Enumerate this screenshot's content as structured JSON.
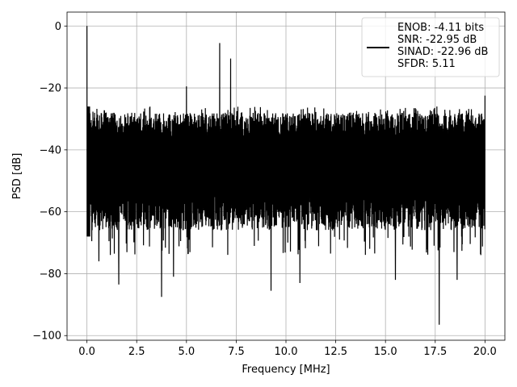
{
  "chart_data": {
    "type": "line",
    "title": "",
    "xlabel": "Frequency [MHz]",
    "ylabel": "PSD [dB]",
    "xlim": [
      -1.0,
      21.0
    ],
    "ylim": [
      -101.5,
      4.5
    ],
    "x_ticks": [
      0.0,
      2.5,
      5.0,
      7.5,
      10.0,
      12.5,
      15.0,
      17.5,
      20.0
    ],
    "x_tick_labels": [
      "0.0",
      "2.5",
      "5.0",
      "7.5",
      "10.0",
      "12.5",
      "15.0",
      "17.5",
      "20.0"
    ],
    "y_ticks": [
      0,
      -20,
      -40,
      -60,
      -80,
      -100
    ],
    "y_tick_labels": [
      "0",
      "−20",
      "−40",
      "−60",
      "−80",
      "−100"
    ],
    "grid": true,
    "legend_position": "upper right",
    "legend_lines": [
      "ENOB: -4.11 bits",
      "SNR: -22.95 dB",
      "SINAD: -22.96 dB",
      "SFDR: 5.11"
    ],
    "series": [
      {
        "color": "#000000",
        "band": {
          "x_range": [
            0.0,
            20.0
          ],
          "upper_envelope_db": -26,
          "lower_envelope_db": -68,
          "typical_high_db": -32,
          "typical_low_db": -60
        },
        "peaks": [
          {
            "x": 0.0,
            "y": 0.0
          },
          {
            "x": 5.0,
            "y": -19.5
          },
          {
            "x": 6.67,
            "y": -5.5
          },
          {
            "x": 7.22,
            "y": -10.5
          },
          {
            "x": 20.0,
            "y": -22.5
          }
        ],
        "dips": [
          {
            "x": 0.6,
            "y": -76
          },
          {
            "x": 1.6,
            "y": -83.5
          },
          {
            "x": 3.75,
            "y": -87.5
          },
          {
            "x": 4.35,
            "y": -81
          },
          {
            "x": 9.25,
            "y": -85.5
          },
          {
            "x": 10.7,
            "y": -83
          },
          {
            "x": 15.5,
            "y": -82
          },
          {
            "x": 17.7,
            "y": -96.5
          },
          {
            "x": 18.6,
            "y": -82
          }
        ]
      }
    ]
  }
}
